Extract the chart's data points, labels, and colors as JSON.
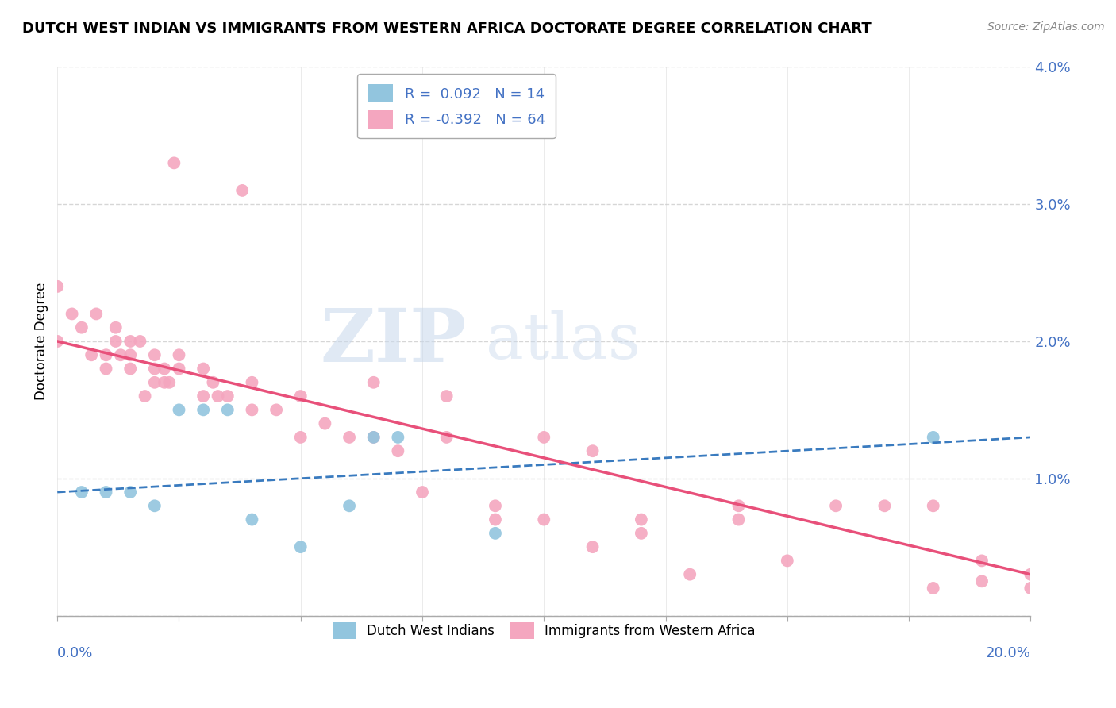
{
  "title": "DUTCH WEST INDIAN VS IMMIGRANTS FROM WESTERN AFRICA DOCTORATE DEGREE CORRELATION CHART",
  "source": "Source: ZipAtlas.com",
  "ylabel": "Doctorate Degree",
  "xmin": 0.0,
  "xmax": 0.2,
  "ymin": 0.0,
  "ymax": 0.04,
  "y_ticks": [
    0.0,
    0.01,
    0.02,
    0.03,
    0.04
  ],
  "y_tick_labels": [
    "",
    "1.0%",
    "2.0%",
    "3.0%",
    "4.0%"
  ],
  "legend_r1": "R =  0.092",
  "legend_n1": "N = 14",
  "legend_r2": "R = -0.392",
  "legend_n2": "N = 64",
  "color_blue": "#92c5de",
  "color_pink": "#f4a6bf",
  "color_blue_line": "#3a7bbf",
  "color_pink_line": "#e8507a",
  "blue_scatter_x": [
    0.005,
    0.01,
    0.015,
    0.02,
    0.025,
    0.03,
    0.035,
    0.04,
    0.05,
    0.06,
    0.065,
    0.07,
    0.09,
    0.18
  ],
  "blue_scatter_y": [
    0.009,
    0.009,
    0.009,
    0.008,
    0.015,
    0.015,
    0.015,
    0.007,
    0.005,
    0.008,
    0.013,
    0.013,
    0.006,
    0.013
  ],
  "pink_scatter_x": [
    0.0,
    0.0,
    0.003,
    0.005,
    0.007,
    0.008,
    0.01,
    0.01,
    0.012,
    0.012,
    0.013,
    0.015,
    0.015,
    0.015,
    0.017,
    0.018,
    0.02,
    0.02,
    0.02,
    0.022,
    0.022,
    0.023,
    0.024,
    0.025,
    0.025,
    0.03,
    0.03,
    0.032,
    0.033,
    0.035,
    0.038,
    0.04,
    0.04,
    0.045,
    0.05,
    0.05,
    0.055,
    0.06,
    0.065,
    0.065,
    0.07,
    0.075,
    0.08,
    0.09,
    0.1,
    0.11,
    0.11,
    0.12,
    0.13,
    0.14,
    0.14,
    0.15,
    0.16,
    0.17,
    0.18,
    0.18,
    0.19,
    0.19,
    0.2,
    0.2,
    0.08,
    0.09,
    0.1,
    0.12
  ],
  "pink_scatter_y": [
    0.024,
    0.02,
    0.022,
    0.021,
    0.019,
    0.022,
    0.019,
    0.018,
    0.021,
    0.02,
    0.019,
    0.02,
    0.019,
    0.018,
    0.02,
    0.016,
    0.019,
    0.018,
    0.017,
    0.018,
    0.017,
    0.017,
    0.033,
    0.019,
    0.018,
    0.018,
    0.016,
    0.017,
    0.016,
    0.016,
    0.031,
    0.017,
    0.015,
    0.015,
    0.013,
    0.016,
    0.014,
    0.013,
    0.013,
    0.017,
    0.012,
    0.009,
    0.016,
    0.007,
    0.013,
    0.005,
    0.012,
    0.007,
    0.003,
    0.007,
    0.008,
    0.004,
    0.008,
    0.008,
    0.002,
    0.008,
    0.0025,
    0.004,
    0.003,
    0.002,
    0.013,
    0.008,
    0.007,
    0.006
  ],
  "blue_line_x0": 0.0,
  "blue_line_y0": 0.009,
  "blue_line_x1": 0.2,
  "blue_line_y1": 0.013,
  "pink_line_x0": 0.0,
  "pink_line_y0": 0.02,
  "pink_line_x1": 0.2,
  "pink_line_y1": 0.003
}
